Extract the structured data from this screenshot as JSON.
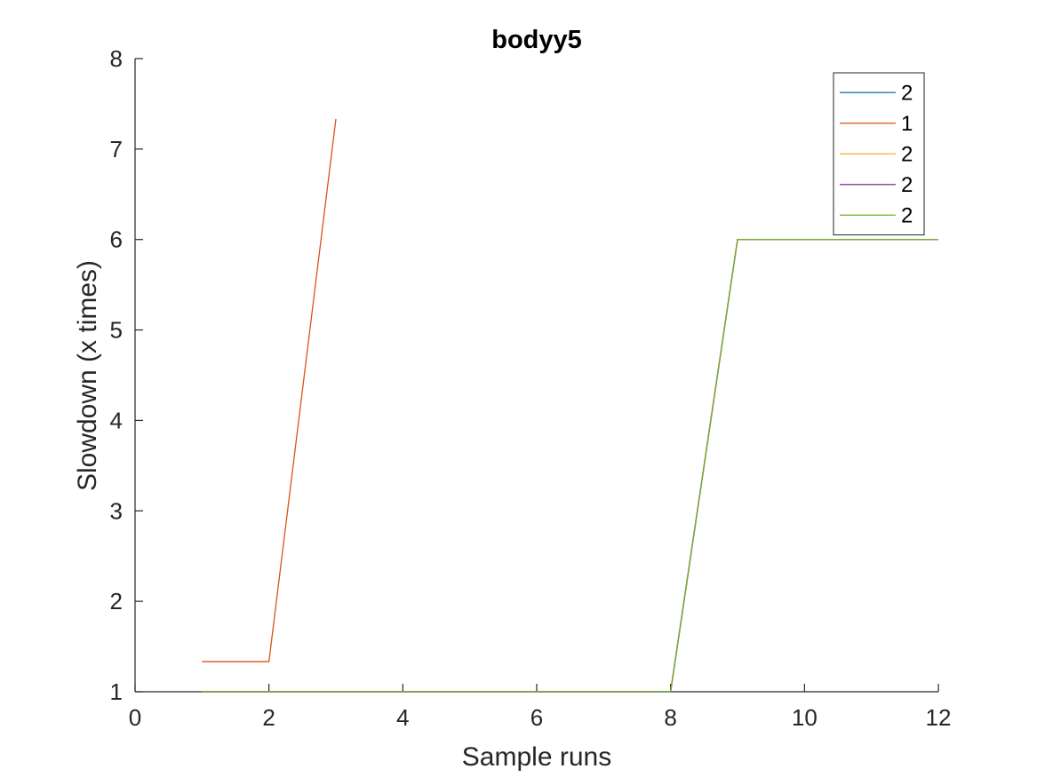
{
  "chart_data": {
    "type": "line",
    "title": "bodyy5",
    "xlabel": "Sample runs",
    "ylabel": "Slowdown (x times)",
    "xlim": [
      0,
      12
    ],
    "ylim": [
      1,
      8
    ],
    "xticks": [
      0,
      2,
      4,
      6,
      8,
      10,
      12
    ],
    "yticks": [
      1,
      2,
      3,
      4,
      5,
      6,
      7,
      8
    ],
    "grid": false,
    "legend_position": "top-right",
    "series": [
      {
        "name": "2",
        "color": "#0072BD",
        "x": [
          1,
          2,
          3,
          4,
          5,
          6,
          7,
          8,
          9,
          10,
          11,
          12
        ],
        "y": [
          1,
          1,
          1,
          1,
          1,
          1,
          1,
          1,
          6,
          6,
          6,
          6
        ]
      },
      {
        "name": "1",
        "color": "#D95319",
        "x": [
          1,
          2,
          3
        ],
        "y": [
          1.333,
          1.333,
          7.333
        ]
      },
      {
        "name": "2",
        "color": "#EDB120",
        "x": [
          1,
          2,
          3,
          4,
          5,
          6,
          7,
          8,
          9,
          10,
          11,
          12
        ],
        "y": [
          1,
          1,
          1,
          1,
          1,
          1,
          1,
          1,
          6,
          6,
          6,
          6
        ]
      },
      {
        "name": "2",
        "color": "#7E2F8E",
        "x": [
          1,
          2,
          3,
          4,
          5,
          6,
          7,
          8,
          9,
          10,
          11,
          12
        ],
        "y": [
          1,
          1,
          1,
          1,
          1,
          1,
          1,
          1,
          6,
          6,
          6,
          6
        ]
      },
      {
        "name": "2",
        "color": "#77AC30",
        "x": [
          1,
          2,
          3,
          4,
          5,
          6,
          7,
          8,
          9,
          10,
          11,
          12
        ],
        "y": [
          1,
          1,
          1,
          1,
          1,
          1,
          1,
          1,
          6,
          6,
          6,
          6
        ]
      }
    ]
  }
}
